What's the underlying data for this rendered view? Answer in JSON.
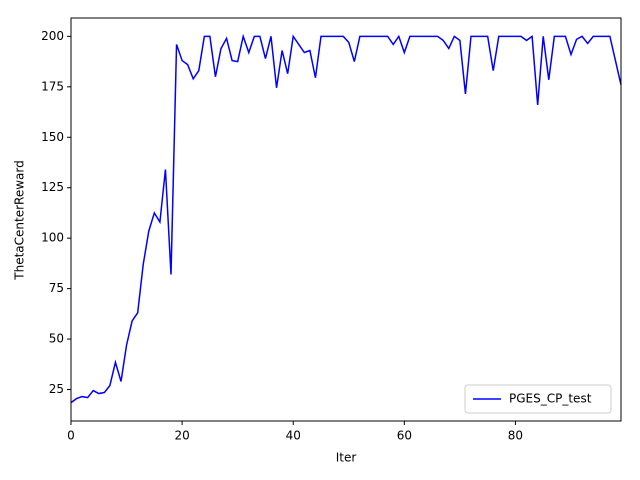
{
  "chart_data": {
    "type": "line",
    "x_label": "Iter",
    "y_label": "ThetaCenterReward",
    "x": [
      0,
      1,
      2,
      3,
      4,
      5,
      6,
      7,
      8,
      9,
      10,
      11,
      12,
      13,
      14,
      15,
      16,
      17,
      18,
      19,
      20,
      21,
      22,
      23,
      24,
      25,
      26,
      27,
      28,
      29,
      30,
      31,
      32,
      33,
      34,
      35,
      36,
      37,
      38,
      39,
      40,
      41,
      42,
      43,
      44,
      45,
      46,
      47,
      48,
      49,
      50,
      51,
      52,
      53,
      54,
      55,
      56,
      57,
      58,
      59,
      60,
      61,
      62,
      63,
      64,
      65,
      66,
      67,
      68,
      69,
      70,
      71,
      72,
      73,
      74,
      75,
      76,
      77,
      78,
      79,
      80,
      81,
      82,
      83,
      84,
      85,
      86,
      87,
      88,
      89,
      90,
      91,
      92,
      93,
      94,
      95,
      96,
      97,
      98,
      99
    ],
    "series": [
      {
        "name": "PGES_CP_test",
        "color": "#0000ff",
        "values": [
          18.5,
          20.5,
          21.5,
          21,
          24.5,
          23,
          23.5,
          27,
          38.5,
          29,
          47,
          59,
          63,
          87,
          103.5,
          112.5,
          108,
          134,
          82,
          196,
          188,
          186,
          179,
          183,
          200,
          200,
          180,
          194,
          199,
          188,
          187.5,
          200,
          192,
          200,
          200,
          189,
          200,
          174.5,
          193,
          181.5,
          200,
          196,
          192,
          193,
          179.5,
          200,
          200,
          200,
          200,
          200,
          197,
          187.5,
          200,
          200,
          200,
          200,
          200,
          200,
          196,
          200,
          192,
          200,
          200,
          200,
          200,
          200,
          200,
          198,
          194,
          200,
          198,
          171.5,
          200,
          200,
          200,
          200,
          183,
          200,
          200,
          200,
          200,
          200,
          198,
          200,
          166,
          200,
          178.5,
          200,
          200,
          200,
          191,
          198.5,
          200,
          196.5,
          200,
          200,
          200,
          200,
          188,
          176
        ]
      }
    ],
    "xlim": [
      0,
      99
    ],
    "ylim": [
      9.4,
      209.1
    ],
    "xticks": [
      0,
      20,
      40,
      60,
      80
    ],
    "yticks": [
      25,
      50,
      75,
      100,
      125,
      150,
      175,
      200
    ],
    "legend": "lower right"
  }
}
